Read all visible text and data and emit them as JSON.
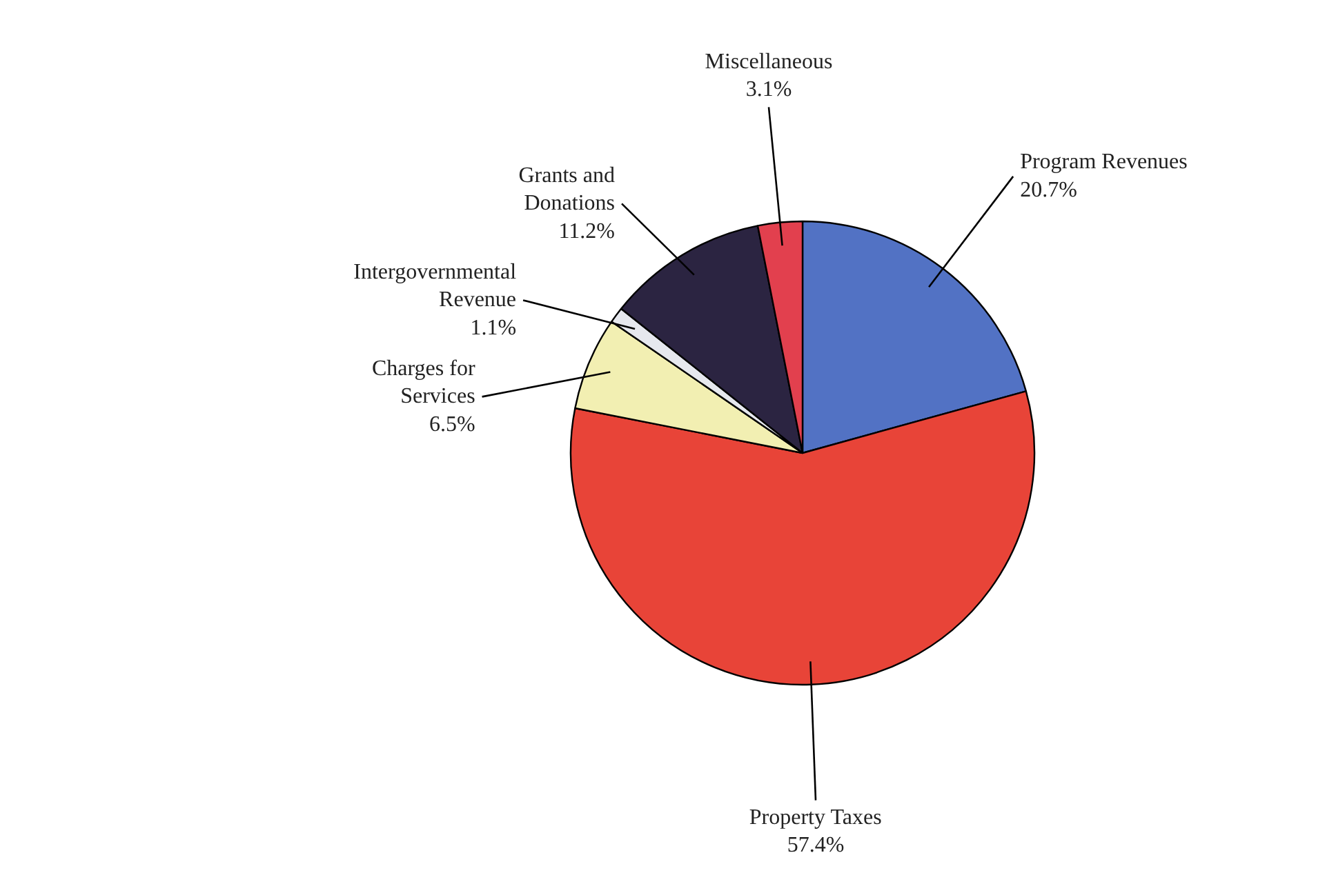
{
  "chart_data": {
    "type": "pie",
    "categories": [
      "Program Revenues",
      "Property Taxes",
      "Charges for Services",
      "Intergovernmental Revenue",
      "Grants and Donations",
      "Miscellaneous"
    ],
    "values": [
      20.7,
      57.4,
      6.5,
      1.1,
      11.2,
      3.1
    ],
    "colors": [
      "#5272c4",
      "#e84438",
      "#f2efb2",
      "#e6e8ee",
      "#2b2441",
      "#e2404e"
    ],
    "value_labels": [
      "20.7%",
      "57.4%",
      "6.5%",
      "1.1%",
      "11.2%",
      "3.1%"
    ]
  }
}
